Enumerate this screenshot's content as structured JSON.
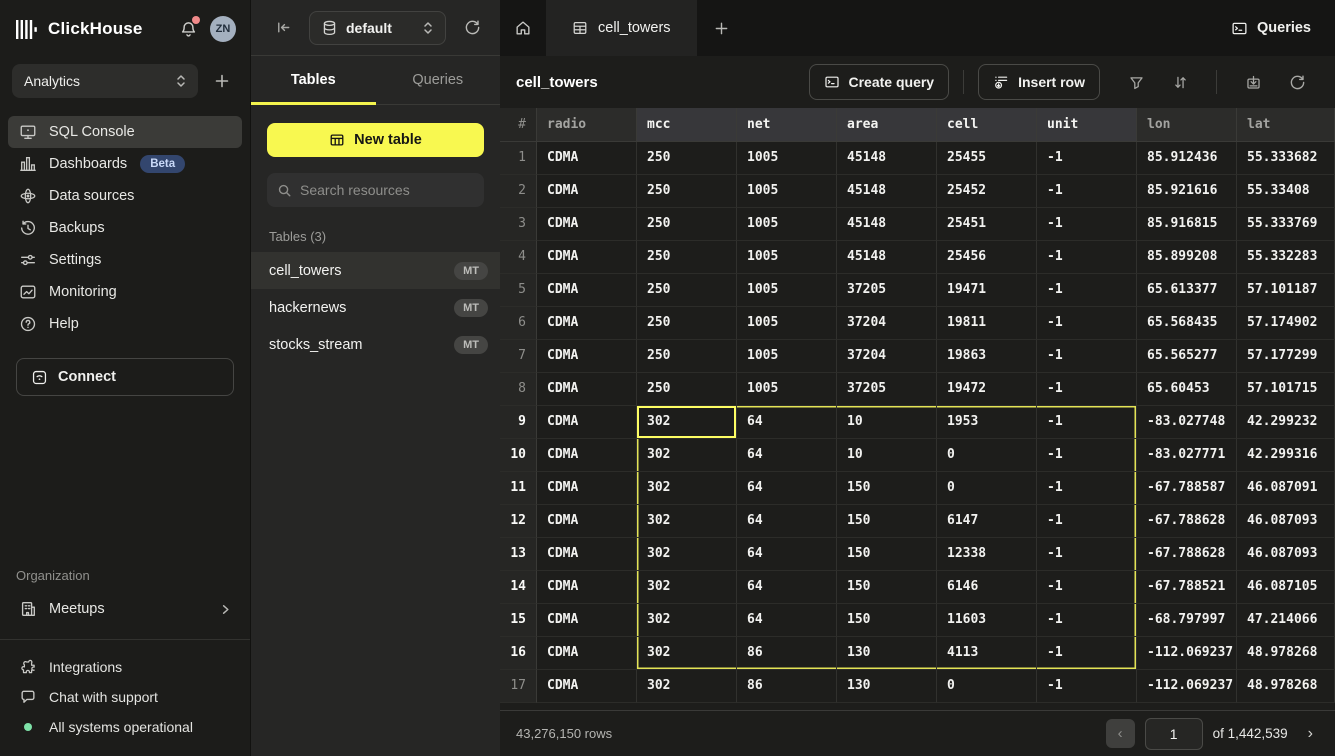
{
  "colors": {
    "accent_yellow": "#f8f850",
    "selection_border": "#e3e356",
    "selection_active": "#fdfd63",
    "beta_bg": "#33466e",
    "status_green": "#7ee2a8"
  },
  "app": {
    "brand": "ClickHouse",
    "avatar_initials": "ZN"
  },
  "sidebar": {
    "workspace": "Analytics",
    "items": [
      {
        "label": "SQL Console",
        "icon": "console-icon",
        "active": true
      },
      {
        "label": "Dashboards",
        "icon": "bar-chart-icon",
        "badge": "Beta"
      },
      {
        "label": "Data sources",
        "icon": "data-sources-icon"
      },
      {
        "label": "Backups",
        "icon": "backup-icon"
      },
      {
        "label": "Settings",
        "icon": "sliders-icon"
      },
      {
        "label": "Monitoring",
        "icon": "monitoring-icon"
      },
      {
        "label": "Help",
        "icon": "help-icon"
      }
    ],
    "connect_label": "Connect",
    "organization_label": "Organization",
    "org_item": "Meetups",
    "integrations_label": "Integrations",
    "chat_label": "Chat with support",
    "status_label": "All systems operational"
  },
  "explorer": {
    "database": "default",
    "tabs": {
      "tables": "Tables",
      "queries": "Queries"
    },
    "new_table_label": "New table",
    "search_placeholder": "Search resources",
    "section_label": "Tables (3)",
    "tables": [
      {
        "name": "cell_towers",
        "engine": "MT",
        "selected": true
      },
      {
        "name": "hackernews",
        "engine": "MT",
        "selected": false
      },
      {
        "name": "stocks_stream",
        "engine": "MT",
        "selected": false
      }
    ]
  },
  "main": {
    "active_tab": "cell_towers",
    "queries_label": "Queries",
    "toolbar": {
      "title": "cell_towers",
      "create_query_label": "Create query",
      "insert_row_label": "Insert row"
    }
  },
  "table": {
    "columns": [
      "#",
      "radio",
      "mcc",
      "net",
      "area",
      "cell",
      "unit",
      "lon",
      "lat"
    ],
    "rows": [
      [
        1,
        "CDMA",
        "250",
        "1005",
        "45148",
        "25455",
        "-1",
        "85.912436",
        "55.333682"
      ],
      [
        2,
        "CDMA",
        "250",
        "1005",
        "45148",
        "25452",
        "-1",
        "85.921616",
        "55.33408"
      ],
      [
        3,
        "CDMA",
        "250",
        "1005",
        "45148",
        "25451",
        "-1",
        "85.916815",
        "55.333769"
      ],
      [
        4,
        "CDMA",
        "250",
        "1005",
        "45148",
        "25456",
        "-1",
        "85.899208",
        "55.332283"
      ],
      [
        5,
        "CDMA",
        "250",
        "1005",
        "37205",
        "19471",
        "-1",
        "65.613377",
        "57.101187"
      ],
      [
        6,
        "CDMA",
        "250",
        "1005",
        "37204",
        "19811",
        "-1",
        "65.568435",
        "57.174902"
      ],
      [
        7,
        "CDMA",
        "250",
        "1005",
        "37204",
        "19863",
        "-1",
        "65.565277",
        "57.177299"
      ],
      [
        8,
        "CDMA",
        "250",
        "1005",
        "37205",
        "19472",
        "-1",
        "65.60453",
        "57.101715"
      ],
      [
        9,
        "CDMA",
        "302",
        "64",
        "10",
        "1953",
        "-1",
        "-83.027748",
        "42.299232"
      ],
      [
        10,
        "CDMA",
        "302",
        "64",
        "10",
        "0",
        "-1",
        "-83.027771",
        "42.299316"
      ],
      [
        11,
        "CDMA",
        "302",
        "64",
        "150",
        "0",
        "-1",
        "-67.788587",
        "46.087091"
      ],
      [
        12,
        "CDMA",
        "302",
        "64",
        "150",
        "6147",
        "-1",
        "-67.788628",
        "46.087093"
      ],
      [
        13,
        "CDMA",
        "302",
        "64",
        "150",
        "12338",
        "-1",
        "-67.788628",
        "46.087093"
      ],
      [
        14,
        "CDMA",
        "302",
        "64",
        "150",
        "6146",
        "-1",
        "-67.788521",
        "46.087105"
      ],
      [
        15,
        "CDMA",
        "302",
        "64",
        "150",
        "11603",
        "-1",
        "-68.797997",
        "47.214066"
      ],
      [
        16,
        "CDMA",
        "302",
        "86",
        "130",
        "4113",
        "-1",
        "-112.069237",
        "48.978268"
      ],
      [
        17,
        "CDMA",
        "302",
        "86",
        "130",
        "0",
        "-1",
        "-112.069237",
        "48.978268"
      ]
    ],
    "selection": {
      "row_start": 9,
      "row_end": 16,
      "col_start": 2,
      "col_end": 6,
      "active_row": 9,
      "active_col": 2
    }
  },
  "footer": {
    "rows_label": "43,276,150 rows",
    "page_value": "1",
    "of_label": "of 1,442,539"
  }
}
